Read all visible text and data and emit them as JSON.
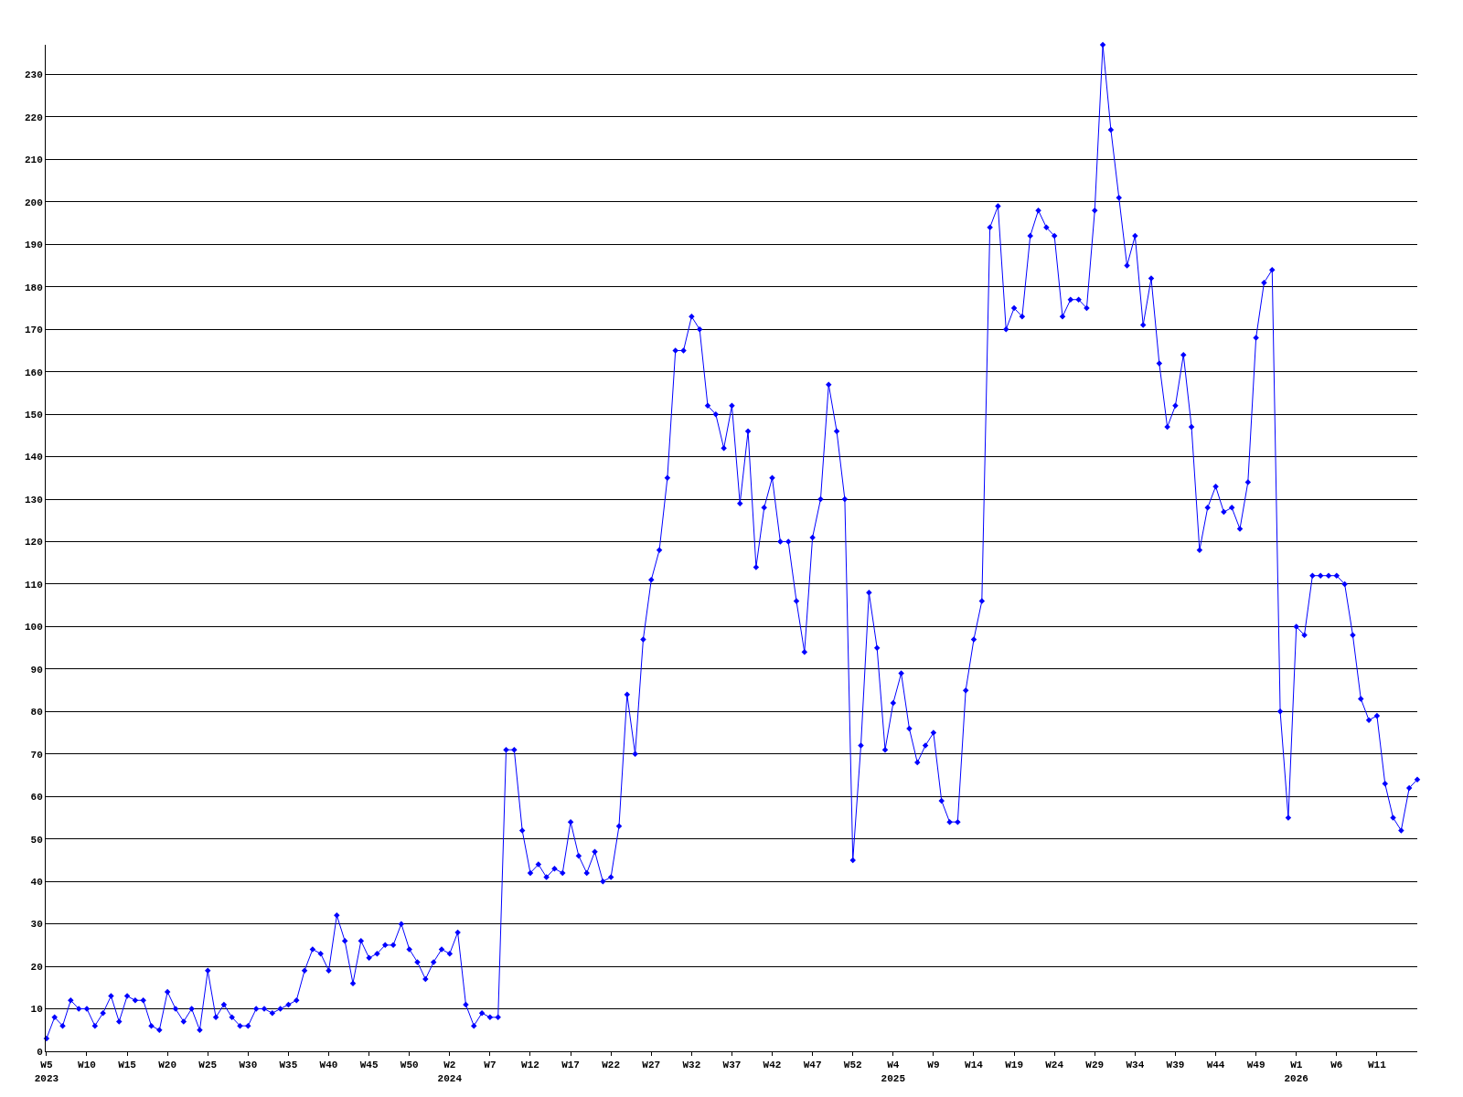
{
  "chart_data": {
    "type": "line",
    "categories": [
      "W5\n2023",
      null,
      null,
      null,
      null,
      "W10",
      null,
      null,
      null,
      null,
      "W15",
      null,
      null,
      null,
      null,
      "W20",
      null,
      null,
      null,
      null,
      "W25",
      null,
      null,
      null,
      null,
      "W30",
      null,
      null,
      null,
      null,
      "W35",
      null,
      null,
      null,
      null,
      "W40",
      null,
      null,
      null,
      null,
      "W45",
      null,
      null,
      null,
      null,
      "W50",
      null,
      null,
      null,
      null,
      "W2\n2024",
      null,
      null,
      null,
      null,
      "W7",
      null,
      null,
      null,
      null,
      "W12",
      null,
      null,
      null,
      null,
      "W17",
      null,
      null,
      null,
      null,
      "W22",
      null,
      null,
      null,
      null,
      "W27",
      null,
      null,
      null,
      null,
      "W32",
      null,
      null,
      null,
      null,
      "W37",
      null,
      null,
      null,
      null,
      "W42",
      null,
      null,
      null,
      null,
      "W47",
      null,
      null,
      null,
      null,
      "W52",
      null,
      null,
      null,
      null,
      "W4\n2025",
      null,
      null,
      null,
      null,
      "W9",
      null,
      null,
      null,
      null,
      "W14",
      null,
      null,
      null,
      null,
      "W19",
      null,
      null,
      null,
      null,
      "W24",
      null,
      null,
      null,
      null,
      "W29",
      null,
      null,
      null,
      null,
      "W34",
      null,
      null,
      null,
      null,
      "W39",
      null,
      null,
      null,
      null,
      "W44",
      null,
      null,
      null,
      null,
      "W49",
      null,
      null,
      null,
      null,
      "W1\n2026",
      null,
      null,
      null,
      null,
      "W6",
      null,
      null,
      null,
      null,
      "W11",
      null,
      null,
      null,
      null,
      null
    ],
    "series": [
      {
        "color": "#0000ff",
        "values": [
          3,
          8,
          6,
          12,
          10,
          10,
          6,
          9,
          13,
          7,
          13,
          12,
          12,
          6,
          5,
          14,
          10,
          7,
          10,
          5,
          19,
          8,
          11,
          8,
          6,
          6,
          10,
          10,
          9,
          10,
          11,
          12,
          19,
          24,
          23,
          19,
          32,
          26,
          16,
          26,
          22,
          23,
          25,
          25,
          30,
          24,
          21,
          17,
          21,
          24,
          23,
          28,
          11,
          6,
          9,
          8,
          8,
          71,
          71,
          52,
          42,
          44,
          41,
          43,
          42,
          54,
          46,
          42,
          47,
          40,
          41,
          53,
          84,
          70,
          97,
          111,
          118,
          135,
          165,
          165,
          173,
          170,
          152,
          150,
          142,
          152,
          129,
          146,
          114,
          128,
          135,
          120,
          120,
          106,
          94,
          121,
          130,
          157,
          146,
          130,
          45,
          72,
          108,
          95,
          71,
          82,
          89,
          76,
          68,
          72,
          75,
          59,
          54,
          54,
          85,
          97,
          106,
          194,
          199,
          170,
          175,
          173,
          192,
          198,
          194,
          192,
          173,
          177,
          177,
          175,
          198,
          237,
          217,
          201,
          185,
          192,
          171,
          182,
          162,
          147,
          152,
          164,
          147,
          118,
          128,
          133,
          127,
          128,
          123,
          134,
          168,
          181,
          184,
          80,
          55,
          100,
          98,
          112,
          112,
          112,
          112,
          110,
          98,
          83,
          78,
          79,
          63,
          55,
          52,
          62,
          64
        ]
      }
    ],
    "ylim": [
      0,
      237
    ],
    "yticks": [
      0,
      10,
      20,
      30,
      40,
      50,
      60,
      70,
      80,
      90,
      100,
      110,
      120,
      130,
      140,
      150,
      160,
      170,
      180,
      190,
      200,
      210,
      220,
      230
    ],
    "grid": "y",
    "marker": "diamond",
    "line_style": "solid"
  }
}
